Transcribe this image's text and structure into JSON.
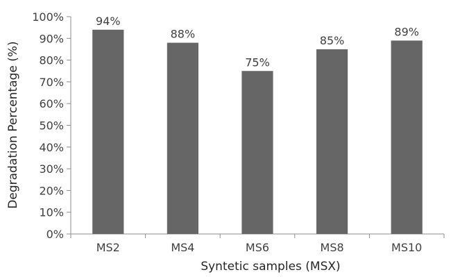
{
  "chart_data": {
    "type": "bar",
    "title": "",
    "xlabel": "Syntetic samples (MSX)",
    "ylabel": "Degradation Percentage (%)",
    "categories": [
      "MS2",
      "MS4",
      "MS6",
      "MS8",
      "MS10"
    ],
    "values": [
      94,
      88,
      75,
      85,
      89
    ],
    "data_labels": [
      "94%",
      "88%",
      "75%",
      "85%",
      "89%"
    ],
    "ylim": [
      0,
      100
    ],
    "yticks": [
      0,
      10,
      20,
      30,
      40,
      50,
      60,
      70,
      80,
      90,
      100
    ],
    "ytick_labels": [
      "0%",
      "10%",
      "20%",
      "30%",
      "40%",
      "50%",
      "60%",
      "70%",
      "80%",
      "90%",
      "100%"
    ],
    "grid": false,
    "legend": "none",
    "bar_color": "#666666"
  }
}
